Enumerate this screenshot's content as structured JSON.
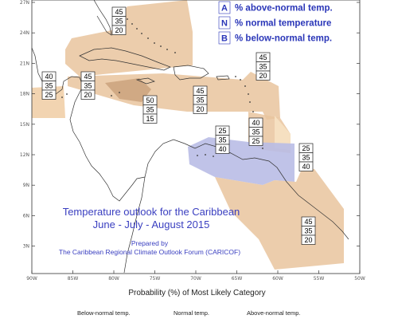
{
  "map_title": [
    "Temperature outlook for the Caribbean",
    "June - July - August 2015"
  ],
  "credit": [
    "Prepared by",
    "The Caribbean Regional Climate Outlook Forum (CARICOF)"
  ],
  "legend": [
    {
      "letter": "A",
      "text": "% above-normal temp."
    },
    {
      "letter": "N",
      "text": "% normal temperature"
    },
    {
      "letter": "B",
      "text": "% below-normal temp."
    }
  ],
  "lat_labels": [
    "27N",
    "24N",
    "21N",
    "18N",
    "15N",
    "12N",
    "9N",
    "6N",
    "3N"
  ],
  "lon_labels": [
    "90W",
    "85W",
    "80W",
    "75W",
    "70W",
    "65W",
    "60W",
    "55W",
    "50W"
  ],
  "probability_boxes": [
    {
      "region": "bahamas",
      "values": [
        "45",
        "35",
        "20"
      ]
    },
    {
      "region": "belize",
      "values": [
        "40",
        "35",
        "25"
      ]
    },
    {
      "region": "cayman-cuba-west",
      "values": [
        "45",
        "35",
        "20"
      ]
    },
    {
      "region": "jamaica-southwest",
      "values": [
        "50",
        "35",
        "15"
      ]
    },
    {
      "region": "haiti-dr",
      "values": [
        "45",
        "35",
        "20"
      ]
    },
    {
      "region": "leeward-islands",
      "values": [
        "45",
        "35",
        "20"
      ]
    },
    {
      "region": "abc-islands",
      "values": [
        "25",
        "35",
        "40"
      ]
    },
    {
      "region": "windward-islands",
      "values": [
        "40",
        "35",
        "25"
      ]
    },
    {
      "region": "trinidad-tobago",
      "values": [
        "25",
        "35",
        "40"
      ]
    },
    {
      "region": "guianas",
      "values": [
        "45",
        "35",
        "20"
      ]
    }
  ],
  "colors": {
    "above_normal": "#e9c49d",
    "above_normal_dark": "#c9a07a",
    "normal": "#f7e0c2",
    "below_normal": "#b9bde6",
    "coast": "#333333",
    "text_blue": "#2a36b8"
  },
  "footer_title": "Probability (%) of Most Likely Category",
  "footer_labels": [
    "Below-normal temp.",
    "Normal temp.",
    "Above-normal temp."
  ]
}
